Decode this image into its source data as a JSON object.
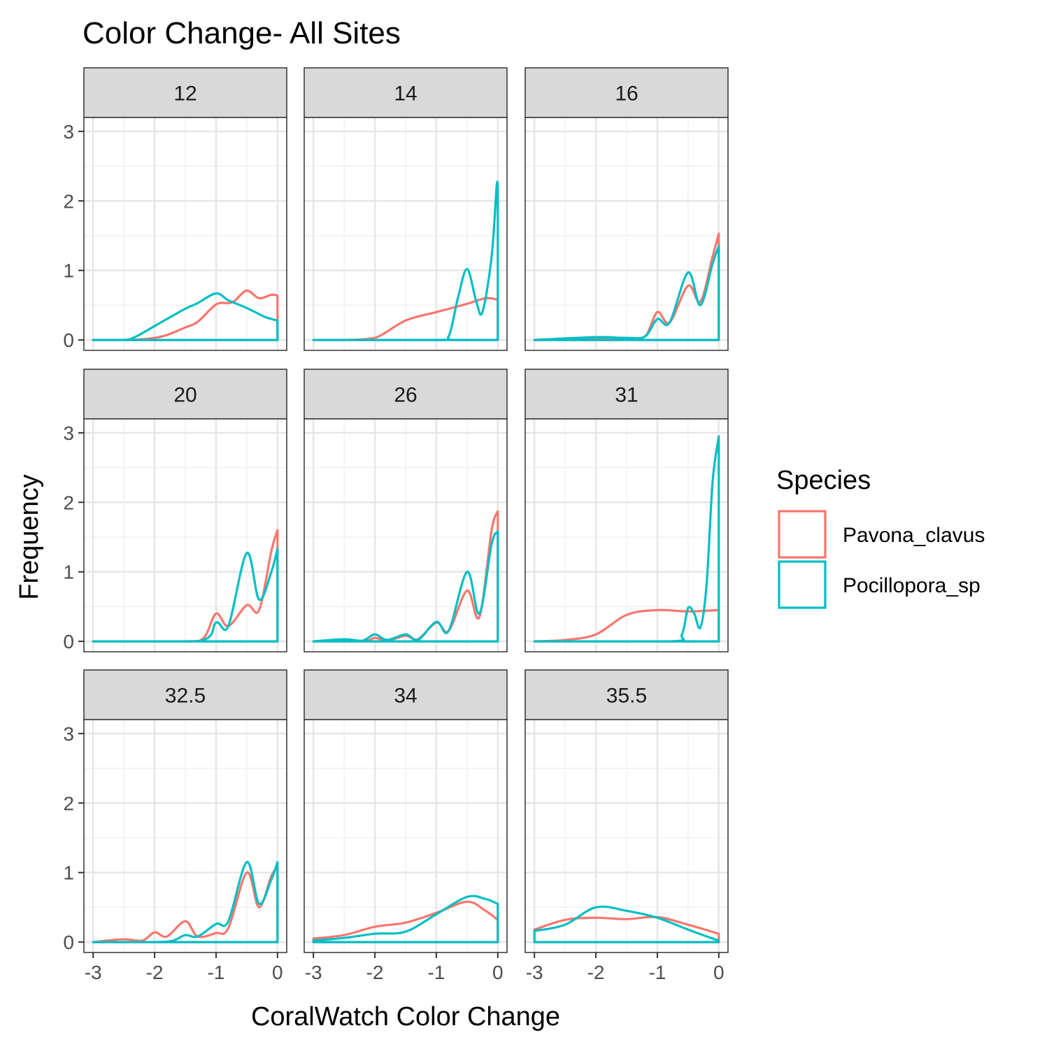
{
  "chart_data": {
    "type": "line",
    "title": "Color Change- All Sites",
    "xlabel": "CoralWatch Color Change",
    "ylabel": "Frequency",
    "xlim": [
      -3.15,
      0.15
    ],
    "ylim": [
      -0.15,
      3.2
    ],
    "x_ticks": [
      -3,
      -2,
      -1,
      0
    ],
    "x_tick_labels": [
      "-3",
      "-2",
      "-1",
      "0"
    ],
    "y_ticks": [
      0,
      1,
      2,
      3
    ],
    "y_tick_labels": [
      "0",
      "1",
      "2",
      "3"
    ],
    "grid": true,
    "legend": {
      "title": "Species",
      "position": "right",
      "entries": [
        {
          "name": "Pavona_clavus",
          "color": "#F8766D"
        },
        {
          "name": "Pocillopora_sp",
          "color": "#00BFC4"
        }
      ]
    },
    "panels": [
      {
        "label": "12",
        "series": [
          {
            "name": "Pavona_clavus",
            "x": [
              -3,
              -2.5,
              -2.2,
              -2.0,
              -1.8,
              -1.5,
              -1.3,
              -1.0,
              -0.8,
              -0.7,
              -0.5,
              -0.3,
              -0.1,
              0
            ],
            "y": [
              0,
              0,
              0.01,
              0.03,
              0.07,
              0.18,
              0.26,
              0.51,
              0.53,
              0.56,
              0.71,
              0.6,
              0.65,
              0.64
            ]
          },
          {
            "name": "Pocillopora_sp",
            "x": [
              -3,
              -2.5,
              -2.3,
              -2.0,
              -1.7,
              -1.5,
              -1.3,
              -1.0,
              -0.8,
              -0.5,
              -0.2,
              0
            ],
            "y": [
              0,
              0,
              0.05,
              0.2,
              0.35,
              0.45,
              0.53,
              0.67,
              0.57,
              0.46,
              0.33,
              0.28
            ]
          }
        ]
      },
      {
        "label": "14",
        "series": [
          {
            "name": "Pavona_clavus",
            "x": [
              -3,
              -2.5,
              -2.0,
              -1.5,
              -1.0,
              -0.5,
              -0.2,
              0
            ],
            "y": [
              0,
              0,
              0.03,
              0.28,
              0.4,
              0.52,
              0.6,
              0.58
            ]
          },
          {
            "name": "Pocillopora_sp",
            "x": [
              -3,
              -1.0,
              -0.8,
              -0.65,
              -0.5,
              -0.35,
              -0.25,
              -0.1,
              -0.02,
              0
            ],
            "y": [
              0,
              0,
              0.05,
              0.6,
              1.02,
              0.55,
              0.4,
              1.2,
              2.2,
              2.2
            ]
          }
        ]
      },
      {
        "label": "16",
        "series": [
          {
            "name": "Pavona_clavus",
            "x": [
              -3,
              -2.0,
              -1.5,
              -1.2,
              -1.0,
              -0.8,
              -0.5,
              -0.3,
              -0.1,
              0
            ],
            "y": [
              0,
              0.02,
              0.02,
              0.05,
              0.4,
              0.25,
              0.78,
              0.55,
              1.2,
              1.53
            ]
          },
          {
            "name": "Pocillopora_sp",
            "x": [
              -3,
              -2.0,
              -1.5,
              -1.2,
              -1.0,
              -0.8,
              -0.5,
              -0.3,
              -0.1,
              0
            ],
            "y": [
              0,
              0.04,
              0.03,
              0.05,
              0.3,
              0.25,
              0.97,
              0.5,
              1.1,
              1.35
            ]
          }
        ]
      },
      {
        "label": "20",
        "series": [
          {
            "name": "Pavona_clavus",
            "x": [
              -3,
              -1.5,
              -1.2,
              -1.0,
              -0.8,
              -0.5,
              -0.3,
              -0.1,
              0
            ],
            "y": [
              0,
              0,
              0.05,
              0.4,
              0.22,
              0.52,
              0.45,
              1.3,
              1.6
            ]
          },
          {
            "name": "Pocillopora_sp",
            "x": [
              -3,
              -1.3,
              -1.0,
              -0.8,
              -0.5,
              -0.3,
              -0.1,
              0
            ],
            "y": [
              0,
              0,
              0.27,
              0.22,
              1.27,
              0.6,
              1.0,
              1.33
            ]
          }
        ]
      },
      {
        "label": "26",
        "series": [
          {
            "name": "Pavona_clavus",
            "x": [
              -3,
              -2.2,
              -2.0,
              -1.8,
              -1.5,
              -1.3,
              -1.0,
              -0.8,
              -0.5,
              -0.3,
              -0.1,
              0
            ],
            "y": [
              0,
              0,
              0.05,
              0.01,
              0.08,
              0.03,
              0.27,
              0.15,
              0.73,
              0.35,
              1.6,
              1.87
            ]
          },
          {
            "name": "Pocillopora_sp",
            "x": [
              -3,
              -2.5,
              -2.2,
              -2.0,
              -1.8,
              -1.5,
              -1.3,
              -1.0,
              -0.8,
              -0.5,
              -0.3,
              -0.1,
              0
            ],
            "y": [
              0,
              0.03,
              0.01,
              0.1,
              0.02,
              0.1,
              0.02,
              0.28,
              0.15,
              1.0,
              0.4,
              1.4,
              1.58
            ]
          }
        ]
      },
      {
        "label": "31",
        "series": [
          {
            "name": "Pavona_clavus",
            "x": [
              -3,
              -2.5,
              -2.0,
              -1.5,
              -1.0,
              -0.5,
              0
            ],
            "y": [
              0,
              0.02,
              0.1,
              0.38,
              0.45,
              0.43,
              0.45
            ]
          },
          {
            "name": "Pocillopora_sp",
            "x": [
              -3,
              -0.8,
              -0.6,
              -0.5,
              -0.4,
              -0.3,
              -0.2,
              -0.1,
              0
            ],
            "y": [
              0,
              0,
              0.1,
              0.48,
              0.4,
              0.2,
              0.8,
              2.3,
              2.95
            ]
          }
        ]
      },
      {
        "label": "32.5",
        "series": [
          {
            "name": "Pavona_clavus",
            "x": [
              -3,
              -2.5,
              -2.2,
              -2.0,
              -1.8,
              -1.5,
              -1.3,
              -1.0,
              -0.8,
              -0.5,
              -0.3,
              -0.1,
              0
            ],
            "y": [
              0,
              0.04,
              0.02,
              0.14,
              0.08,
              0.3,
              0.08,
              0.13,
              0.2,
              1.0,
              0.5,
              0.95,
              1.08
            ]
          },
          {
            "name": "Pocillopora_sp",
            "x": [
              -3,
              -2.0,
              -1.7,
              -1.5,
              -1.3,
              -1.0,
              -0.8,
              -0.5,
              -0.3,
              -0.1,
              0
            ],
            "y": [
              0,
              0,
              0.02,
              0.1,
              0.08,
              0.26,
              0.3,
              1.15,
              0.55,
              0.9,
              1.15
            ]
          }
        ]
      },
      {
        "label": "34",
        "series": [
          {
            "name": "Pavona_clavus",
            "x": [
              -3,
              -2.5,
              -2.0,
              -1.5,
              -1.0,
              -0.5,
              -0.2,
              0
            ],
            "y": [
              0.05,
              0.1,
              0.22,
              0.28,
              0.42,
              0.58,
              0.45,
              0.32
            ]
          },
          {
            "name": "Pocillopora_sp",
            "x": [
              -3,
              -2.5,
              -2.0,
              -1.5,
              -1.0,
              -0.5,
              -0.2,
              0
            ],
            "y": [
              0.02,
              0.06,
              0.12,
              0.15,
              0.4,
              0.65,
              0.62,
              0.55
            ]
          }
        ]
      },
      {
        "label": "35.5",
        "series": [
          {
            "name": "Pavona_clavus",
            "x": [
              -3,
              -2.5,
              -2.0,
              -1.5,
              -1.0,
              -0.5,
              0
            ],
            "y": [
              0.18,
              0.32,
              0.35,
              0.33,
              0.36,
              0.25,
              0.12
            ]
          },
          {
            "name": "Pocillopora_sp",
            "x": [
              -3,
              -2.5,
              -2.0,
              -1.5,
              -1.0,
              -0.5,
              0
            ],
            "y": [
              0.16,
              0.25,
              0.5,
              0.45,
              0.35,
              0.18,
              0.02
            ]
          }
        ]
      }
    ]
  }
}
